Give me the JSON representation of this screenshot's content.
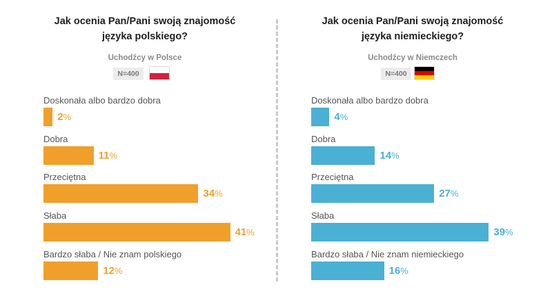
{
  "chart_data": [
    {
      "type": "bar",
      "orientation": "horizontal",
      "title": "Jak ocenia Pan/Pani swoją znajomość języka polskiego?",
      "title_lines": [
        "Jak ocenia Pan/Pani swoją znajomość",
        "języka polskiego?"
      ],
      "subtitle": "Uchodźcy w Polsce",
      "n_label": "N=400",
      "flag": "poland-flag",
      "color": "#f0a02a",
      "unit": "%",
      "categories": [
        "Doskonała albo bardzo dobra",
        "Dobra",
        "Przeciętna",
        "Słaba",
        "Bardzo słaba / Nie znam polskiego"
      ],
      "values": [
        2,
        11,
        34,
        41,
        12
      ]
    },
    {
      "type": "bar",
      "orientation": "horizontal",
      "title": "Jak ocenia Pan/Pani swoją znajomość języka niemieckiego?",
      "title_lines": [
        "Jak ocenia Pan/Pani swoją znajomość",
        "języka niemieckiego?"
      ],
      "subtitle": "Uchodźcy w Niemczech",
      "n_label": "N=400",
      "flag": "germany-flag",
      "color": "#4ab0d4",
      "unit": "%",
      "categories": [
        "Doskonała albo bardzo dobra",
        "Dobra",
        "Przeciętna",
        "Słaba",
        "Bardzo słaba / Nie znam niemieckiego"
      ],
      "values": [
        4,
        14,
        27,
        39,
        16
      ]
    }
  ]
}
